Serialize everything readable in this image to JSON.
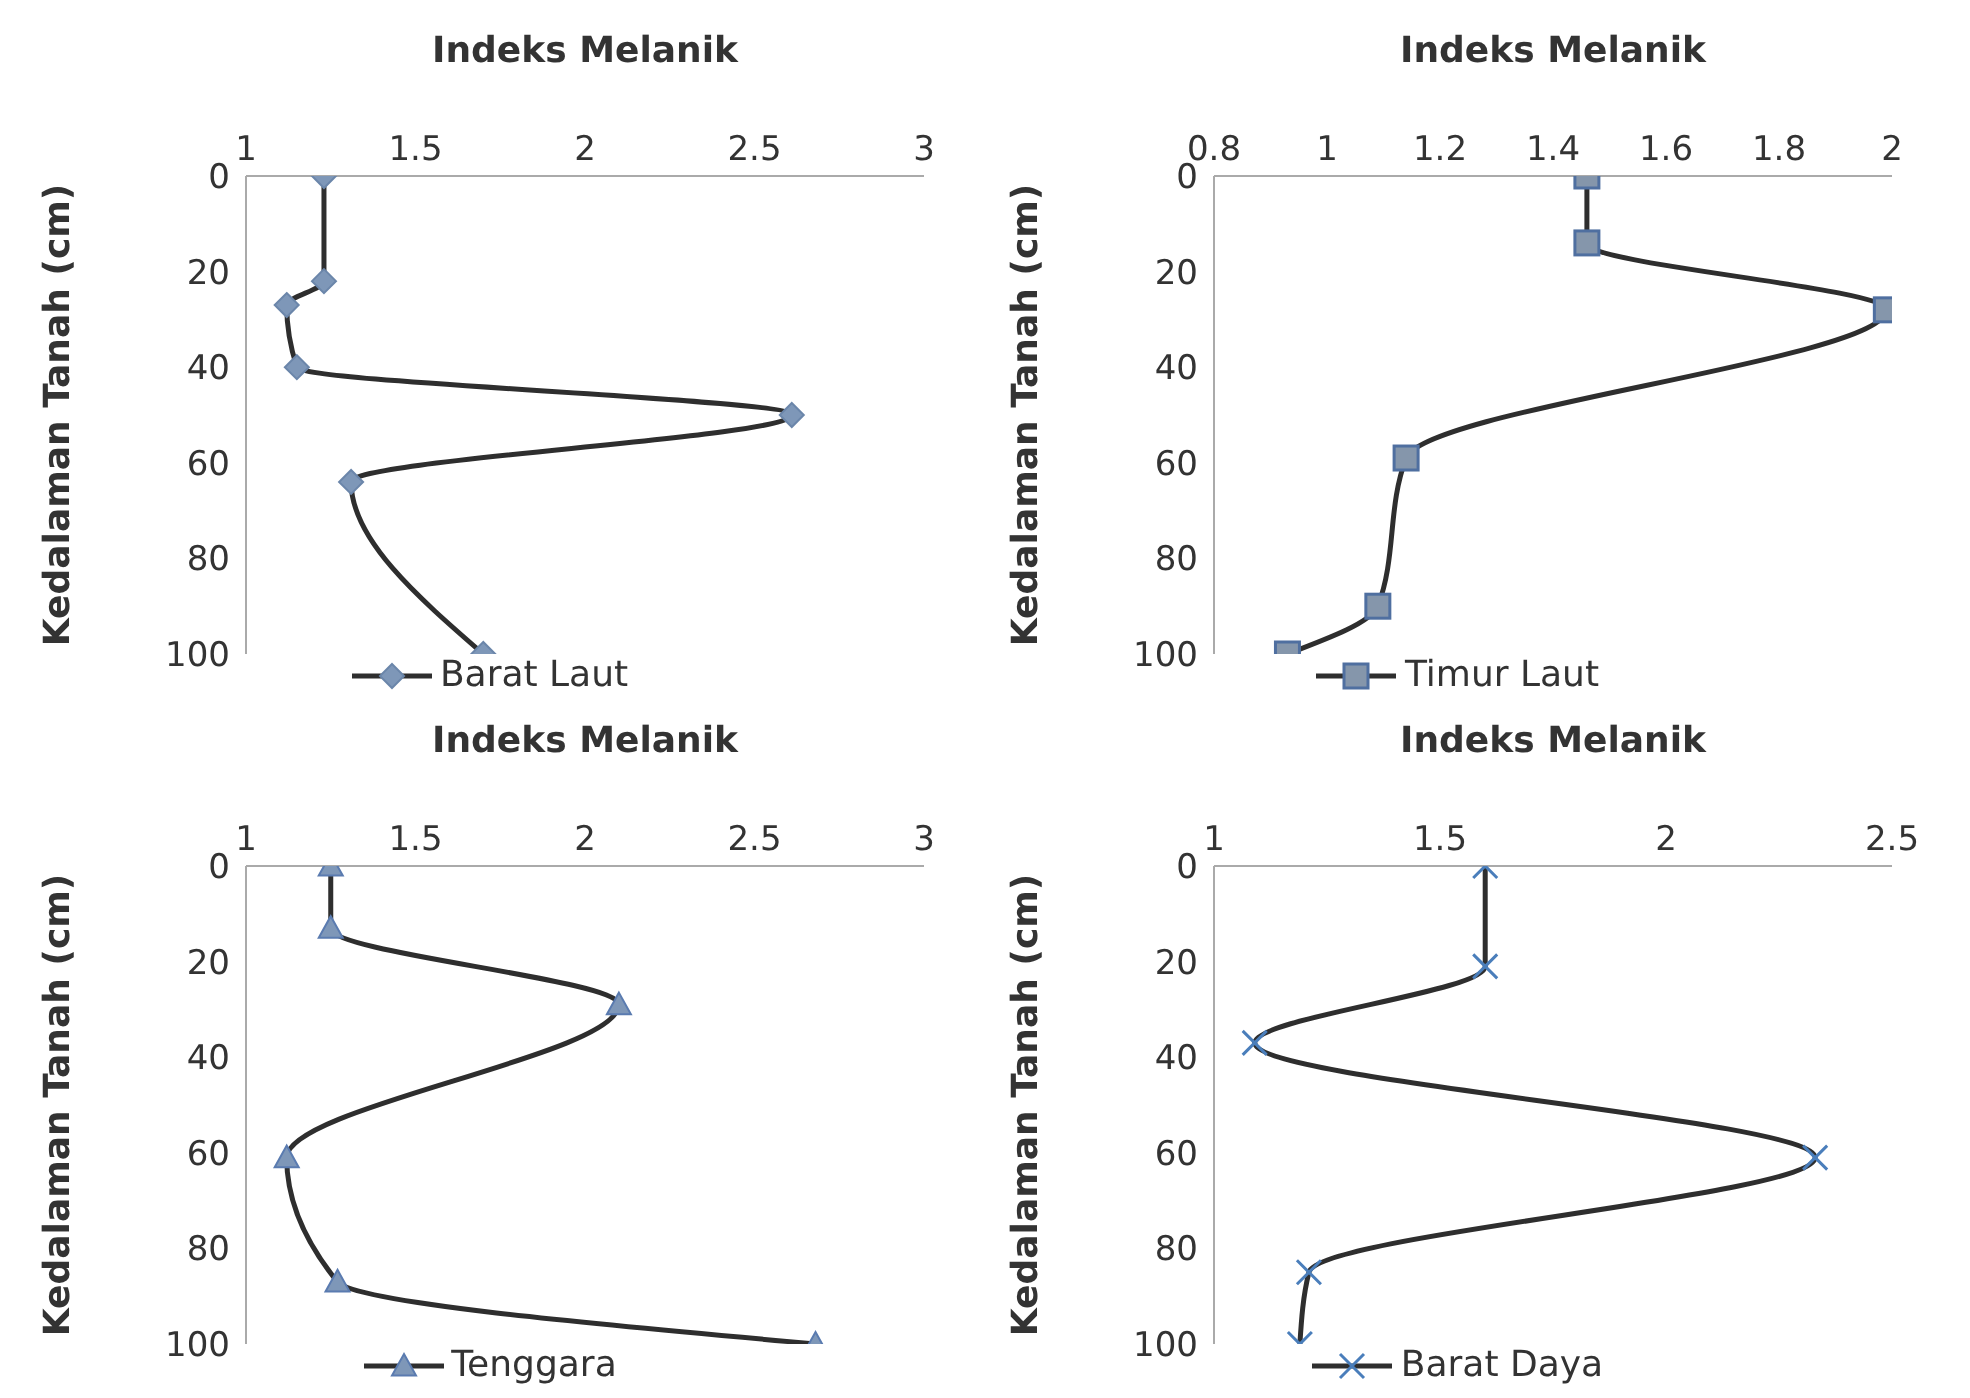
{
  "chart_data": [
    {
      "type": "line",
      "xlabel": "Indeks Melanik",
      "ylabel": "Kedalaman Tanah (cm)",
      "xlim": [
        1,
        3
      ],
      "xticks": [
        1,
        1.5,
        2,
        2.5,
        3
      ],
      "ylim": [
        100,
        0
      ],
      "yticks": [
        0,
        20,
        40,
        60,
        80,
        100
      ],
      "legend": "bottom",
      "marker": "diamond",
      "grid": false,
      "series": [
        {
          "name": "Barat Laut",
          "color": "#7e97b8",
          "x": [
            1.23,
            1.23,
            1.12,
            1.15,
            2.61,
            1.31,
            1.7
          ],
          "values": [
            0,
            22,
            27,
            40,
            50,
            64,
            100
          ]
        }
      ]
    },
    {
      "type": "line",
      "xlabel": "Indeks Melanik",
      "ylabel": "Kedalaman Tanah (cm)",
      "xlim": [
        0.8,
        2
      ],
      "xticks": [
        0.8,
        1,
        1.2,
        1.4,
        1.6,
        1.8,
        2
      ],
      "ylim": [
        100,
        0
      ],
      "yticks": [
        0,
        20,
        40,
        60,
        80,
        100
      ],
      "legend": "bottom",
      "marker": "square",
      "grid": false,
      "series": [
        {
          "name": "Timur Laut",
          "color": "#8596ab",
          "x": [
            1.46,
            1.46,
            1.99,
            1.14,
            1.09,
            0.93
          ],
          "values": [
            0,
            14,
            28,
            59,
            90,
            100
          ]
        }
      ]
    },
    {
      "type": "line",
      "xlabel": "Indeks Melanik",
      "ylabel": "Kedalaman Tanah (cm)",
      "xlim": [
        1,
        3
      ],
      "xticks": [
        1,
        1.5,
        2,
        2.5,
        3
      ],
      "ylim": [
        100,
        0
      ],
      "yticks": [
        0,
        20,
        40,
        60,
        80,
        100
      ],
      "legend": "bottom",
      "marker": "triangle",
      "grid": false,
      "series": [
        {
          "name": "Tenggara",
          "color": "#7e97b8",
          "x": [
            1.25,
            1.25,
            2.1,
            1.12,
            1.27,
            2.68
          ],
          "values": [
            0,
            13,
            29,
            61,
            87,
            100
          ]
        }
      ]
    },
    {
      "type": "line",
      "xlabel": "Indeks Melanik",
      "ylabel": "Kedalaman Tanah (cm)",
      "xlim": [
        1,
        2.5
      ],
      "xticks": [
        1,
        1.5,
        2,
        2.5
      ],
      "ylim": [
        100,
        0
      ],
      "yticks": [
        0,
        20,
        40,
        60,
        80,
        100
      ],
      "legend": "bottom",
      "marker": "cross",
      "grid": false,
      "series": [
        {
          "name": "Barat Daya",
          "color": "#4a7ebb",
          "x": [
            1.6,
            1.6,
            1.09,
            2.33,
            1.21,
            1.19
          ],
          "values": [
            0,
            21,
            37,
            61,
            85,
            100
          ]
        }
      ]
    }
  ]
}
